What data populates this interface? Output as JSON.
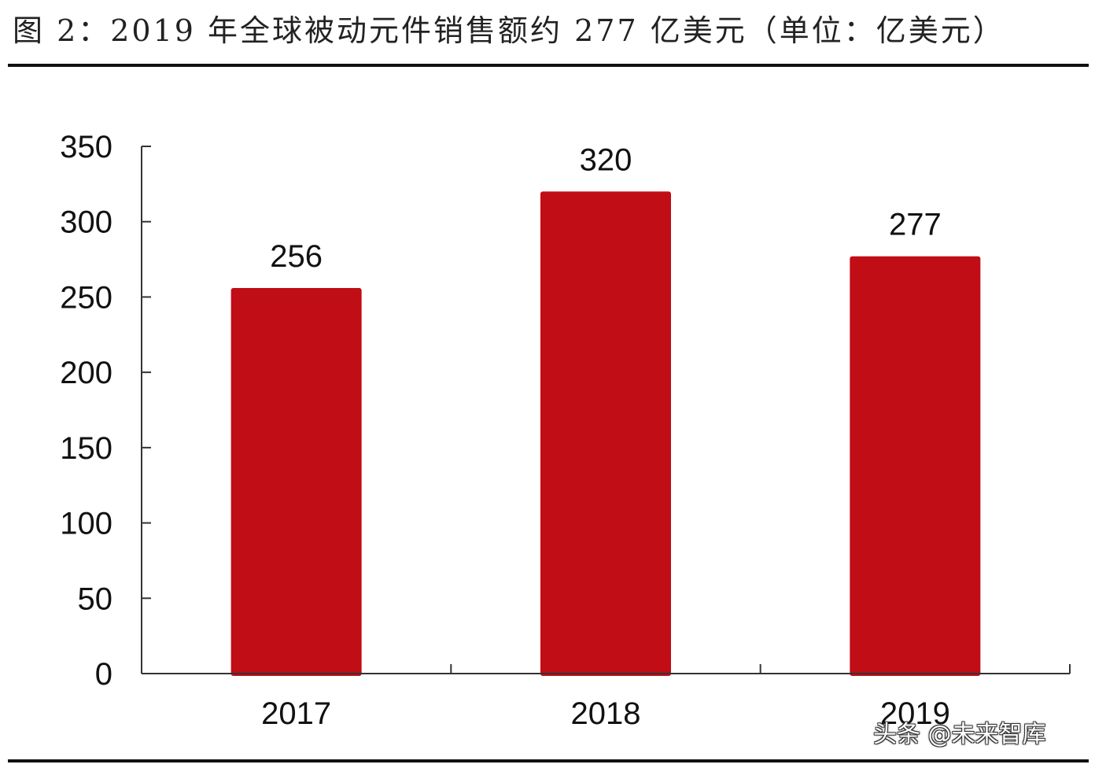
{
  "figure": {
    "title": "图 2：2019 年全球被动元件销售额约 277 亿美元（单位：亿美元）"
  },
  "watermark": {
    "text": "头条 @未来智库"
  },
  "chart_data": {
    "type": "bar",
    "categories": [
      "2017",
      "2018",
      "2019"
    ],
    "values": [
      256,
      320,
      277
    ],
    "data_labels": [
      "256",
      "320",
      "277"
    ],
    "yticks": [
      "0",
      "50",
      "100",
      "150",
      "200",
      "250",
      "300",
      "350"
    ],
    "ylim": [
      0,
      350
    ],
    "grid": false,
    "legend": "none",
    "bar_color": "#c00d16",
    "axis_color": "#333333",
    "text_color": "#111111"
  }
}
